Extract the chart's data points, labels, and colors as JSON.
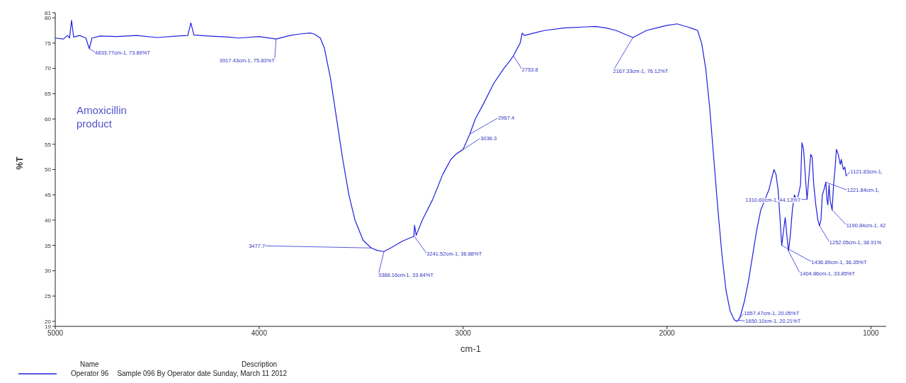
{
  "chart_data": {
    "type": "line",
    "xlabel": "cm-1",
    "ylabel": "%T",
    "xlim": [
      5000,
      925
    ],
    "xticks": [
      5000,
      4000,
      3000,
      2000,
      1000
    ],
    "ylim": [
      19,
      81
    ],
    "yticks": [
      19,
      20,
      25,
      30,
      35,
      40,
      45,
      50,
      55,
      60,
      65,
      70,
      75,
      80,
      81
    ],
    "grid": false,
    "marker": "none",
    "line_style": "solid",
    "legend": "bottom",
    "series": [
      {
        "name": "Operator 96",
        "color": "#1f1fe0",
        "x": [
          5000,
          4960,
          4940,
          4930,
          4920,
          4910,
          4880,
          4850,
          4833,
          4820,
          4780,
          4700,
          4600,
          4500,
          4400,
          4350,
          4335,
          4320,
          4250,
          4150,
          4100,
          4000,
          3917,
          3850,
          3800,
          3750,
          3730,
          3700,
          3680,
          3650,
          3620,
          3590,
          3560,
          3530,
          3490,
          3450,
          3420,
          3388,
          3350,
          3300,
          3260,
          3245,
          3241,
          3238,
          3230,
          3200,
          3150,
          3100,
          3060,
          3036,
          3000,
          2967,
          2940,
          2900,
          2850,
          2800,
          2770,
          2753,
          2740,
          2720,
          2710,
          2700,
          2600,
          2500,
          2400,
          2350,
          2300,
          2250,
          2167,
          2100,
          2050,
          2000,
          1950,
          1900,
          1870,
          1850,
          1830,
          1810,
          1790,
          1770,
          1750,
          1730,
          1710,
          1690,
          1670,
          1657,
          1650,
          1640,
          1620,
          1600,
          1580,
          1560,
          1540,
          1520,
          1500,
          1485,
          1475,
          1465,
          1455,
          1445,
          1437,
          1428,
          1420,
          1412,
          1404,
          1395,
          1385,
          1375,
          1365,
          1355,
          1345,
          1338,
          1330,
          1320,
          1313,
          1305,
          1295,
          1288,
          1280,
          1270,
          1260,
          1252,
          1245,
          1238,
          1230,
          1221,
          1215,
          1211,
          1205,
          1200,
          1195,
          1190,
          1183,
          1176,
          1169,
          1160,
          1150,
          1145,
          1135,
          1128,
          1121
        ],
        "values": [
          76,
          75.8,
          76.5,
          76,
          79.5,
          76.2,
          76.5,
          76,
          73.9,
          76,
          76.4,
          76.3,
          76.5,
          76.1,
          76.4,
          76.5,
          79,
          76.6,
          76.4,
          76.2,
          76,
          76.3,
          75.8,
          76.5,
          76.8,
          77,
          76.8,
          76,
          74,
          68,
          60,
          52,
          45,
          40,
          36,
          34.5,
          34,
          33.8,
          34.6,
          35.8,
          36.5,
          36.7,
          36.9,
          39,
          37,
          40,
          44,
          49,
          52,
          53,
          54,
          57,
          60,
          63,
          67,
          70,
          71.5,
          72.5,
          73.5,
          75,
          77,
          76.5,
          77.5,
          78,
          78.2,
          78.3,
          78,
          77.5,
          76.1,
          77.5,
          78,
          78.5,
          78.8,
          78.2,
          77.8,
          77.5,
          75,
          70,
          62,
          52,
          42,
          33,
          26,
          22,
          20.3,
          20.0,
          20.2,
          21,
          24,
          28,
          33,
          38,
          42,
          44,
          46,
          48.5,
          50,
          49,
          46,
          40,
          35,
          38,
          40.5,
          37,
          33.9,
          37,
          42,
          45,
          44,
          45,
          47,
          55.3,
          54,
          48,
          44.1,
          48,
          53,
          52.5,
          47,
          43,
          40,
          38.9,
          40,
          45,
          46,
          47.5,
          44,
          43,
          47,
          44,
          43,
          42,
          47,
          50,
          54,
          53,
          51,
          52,
          50,
          50.5,
          48.7
        ]
      }
    ],
    "annotations": [
      {
        "text": "4833.77cm-1, 73.89%T",
        "x": 4833,
        "y": 73.9
      },
      {
        "text": "3917.43cm-1, 75.83%T",
        "x": 3917,
        "y": 75.8
      },
      {
        "text": "2753.8",
        "x": 2753,
        "y": 72.5
      },
      {
        "text": "2167.33cm-1, 76.12%T",
        "x": 2167,
        "y": 76.1
      },
      {
        "text": "2967.4",
        "x": 2967,
        "y": 57
      },
      {
        "text": "3036.3",
        "x": 3036,
        "y": 53
      },
      {
        "text": "3477.7",
        "x": 3450,
        "y": 34.5
      },
      {
        "text": "3388.16cm-1, 33.84%T",
        "x": 3388,
        "y": 33.8
      },
      {
        "text": "3241.52cm-1, 36.88%T",
        "x": 3241,
        "y": 36.9
      },
      {
        "text": "1310.60cm-1, 44.13%T",
        "x": 1313,
        "y": 44.1
      },
      {
        "text": "1121.83cm-1,",
        "x": 1121,
        "y": 48.7
      },
      {
        "text": "1221.84cm-1,",
        "x": 1221,
        "y": 47.5
      },
      {
        "text": "1190.84cm-1, 42",
        "x": 1190,
        "y": 42
      },
      {
        "text": "1252.05cm-1, 38.91%",
        "x": 1252,
        "y": 38.9
      },
      {
        "text": "1436.89cm-1, 36.35%T",
        "x": 1437,
        "y": 35
      },
      {
        "text": "1404.86cm-1, 33.85%T",
        "x": 1404,
        "y": 33.9
      },
      {
        "text": "1657.47cm-1, 20.05%T",
        "x": 1657,
        "y": 20.05
      },
      {
        "text": "1650.10cm-1, 20.21%T",
        "x": 1650,
        "y": 20.2
      },
      "Amoxicillin product",
      "Name",
      "Description",
      "Sample 096 By Operator date Sunday, March 11 2012"
    ]
  }
}
